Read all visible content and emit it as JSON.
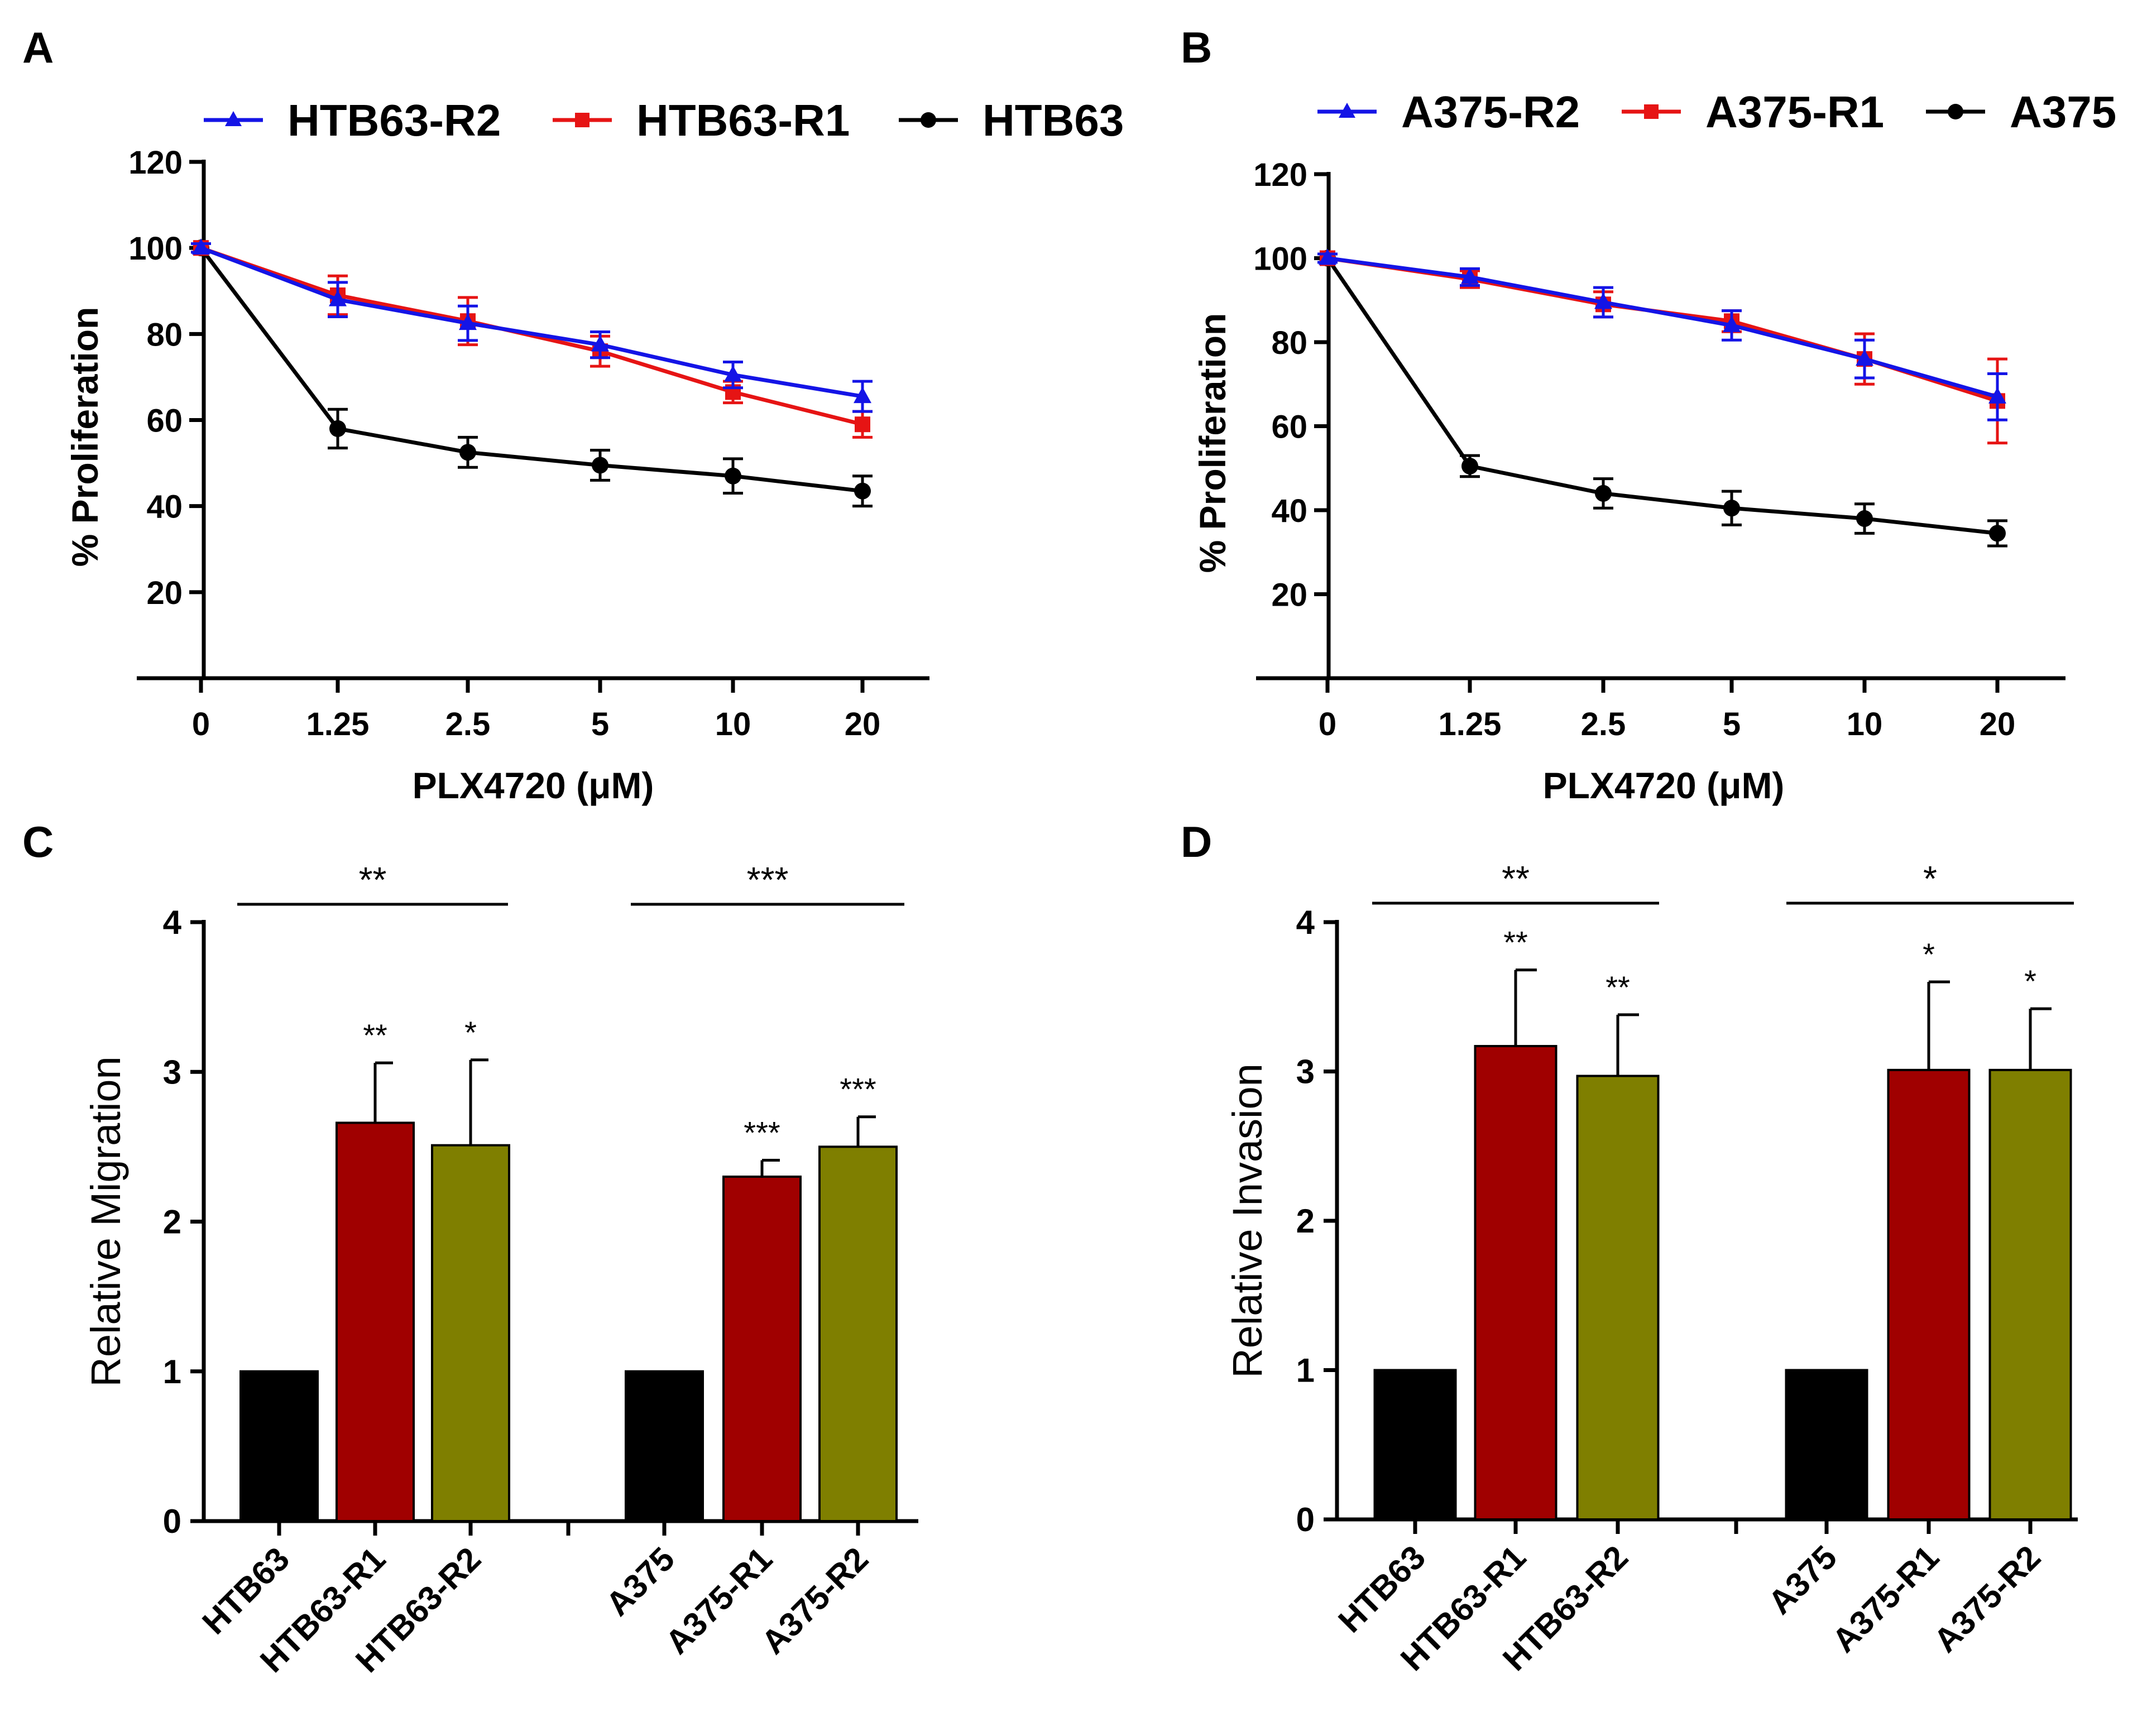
{
  "panels": {
    "A": "A",
    "B": "B",
    "C": "C",
    "D": "D"
  },
  "chart_data": [
    {
      "id": "A",
      "type": "line",
      "categories": [
        "0",
        "1.25",
        "2.5",
        "5",
        "10",
        "20"
      ],
      "xlabel": "PLX4720 (μM)",
      "ylabel": "% Proliferation",
      "ylim": [
        0,
        120
      ],
      "yticks": [
        20,
        40,
        60,
        80,
        100,
        120
      ],
      "legend_position": "top",
      "series": [
        {
          "name": "HTB63-R2",
          "color": "#1414e6",
          "marker": "triangle",
          "values": [
            100,
            88,
            82.5,
            77.5,
            70.5,
            65.5
          ],
          "errors": [
            1,
            4,
            4,
            3,
            3,
            3.5
          ]
        },
        {
          "name": "HTB63-R1",
          "color": "#e61414",
          "marker": "square",
          "values": [
            100,
            89,
            83,
            76,
            66.5,
            59
          ],
          "errors": [
            1,
            4.5,
            5.5,
            3.5,
            2.5,
            3
          ]
        },
        {
          "name": "HTB63",
          "color": "#000000",
          "marker": "circle",
          "values": [
            100,
            58,
            52.5,
            49.5,
            47,
            43.5
          ],
          "errors": [
            1,
            4.5,
            3.5,
            3.5,
            4,
            3.5
          ]
        }
      ]
    },
    {
      "id": "B",
      "type": "line",
      "categories": [
        "0",
        "1.25",
        "2.5",
        "5",
        "10",
        "20"
      ],
      "xlabel": "PLX4720 (μM)",
      "ylabel": "% Proliferation",
      "ylim": [
        0,
        120
      ],
      "yticks": [
        20,
        40,
        60,
        80,
        100,
        120
      ],
      "legend_position": "top",
      "series": [
        {
          "name": "A375-R2",
          "color": "#1414e6",
          "marker": "triangle",
          "values": [
            100,
            95.5,
            89.5,
            84,
            76,
            67
          ],
          "errors": [
            1,
            2,
            3.5,
            3.5,
            4.5,
            5.5
          ]
        },
        {
          "name": "A375-R1",
          "color": "#e61414",
          "marker": "square",
          "values": [
            100,
            95,
            89,
            85,
            76,
            66
          ],
          "errors": [
            1,
            2,
            3,
            2.5,
            6,
            10
          ]
        },
        {
          "name": "A375",
          "color": "#000000",
          "marker": "circle",
          "values": [
            100,
            50.5,
            44,
            40.5,
            38,
            34.5
          ],
          "errors": [
            1,
            2.5,
            3.5,
            4,
            3.5,
            3
          ]
        }
      ]
    },
    {
      "id": "C",
      "type": "bar",
      "ylabel": "Relative Migration",
      "ylim": [
        0,
        4
      ],
      "yticks": [
        0,
        1,
        2,
        3,
        4
      ],
      "groups": [
        {
          "overall_sig": "**",
          "bars": [
            {
              "label": "HTB63",
              "value": 1.0,
              "error": 0,
              "sig": "",
              "color": "#000000"
            },
            {
              "label": "HTB63-R1",
              "value": 2.66,
              "error": 0.4,
              "sig": "**",
              "color": "#a00000"
            },
            {
              "label": "HTB63-R2",
              "value": 2.51,
              "error": 0.57,
              "sig": "*",
              "color": "#7f7f00"
            }
          ]
        },
        {
          "overall_sig": "***",
          "bars": [
            {
              "label": "A375",
              "value": 1.0,
              "error": 0,
              "sig": "",
              "color": "#000000"
            },
            {
              "label": "A375-R1",
              "value": 2.3,
              "error": 0.11,
              "sig": "***",
              "color": "#a00000"
            },
            {
              "label": "A375-R2",
              "value": 2.5,
              "error": 0.2,
              "sig": "***",
              "color": "#7f7f00"
            }
          ]
        }
      ]
    },
    {
      "id": "D",
      "type": "bar",
      "ylabel": "Relative Invasion",
      "ylim": [
        0,
        4
      ],
      "yticks": [
        0,
        1,
        2,
        3,
        4
      ],
      "groups": [
        {
          "overall_sig": "**",
          "bars": [
            {
              "label": "HTB63",
              "value": 1.0,
              "error": 0,
              "sig": "",
              "color": "#000000"
            },
            {
              "label": "HTB63-R1",
              "value": 3.17,
              "error": 0.51,
              "sig": "**",
              "color": "#a00000"
            },
            {
              "label": "HTB63-R2",
              "value": 2.97,
              "error": 0.41,
              "sig": "**",
              "color": "#7f7f00"
            }
          ]
        },
        {
          "overall_sig": "*",
          "bars": [
            {
              "label": "A375",
              "value": 1.0,
              "error": 0,
              "sig": "",
              "color": "#000000"
            },
            {
              "label": "A375-R1",
              "value": 3.01,
              "error": 0.59,
              "sig": "*",
              "color": "#a00000"
            },
            {
              "label": "A375-R2",
              "value": 3.01,
              "error": 0.41,
              "sig": "*",
              "color": "#7f7f00"
            }
          ]
        }
      ]
    }
  ]
}
